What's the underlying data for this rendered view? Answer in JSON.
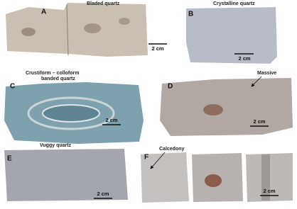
{
  "panels": [
    {
      "letter": "A",
      "caption": "Bladed quartz",
      "scale": "2 cm"
    },
    {
      "letter": "B",
      "caption": "Crystalline quartz",
      "scale": "2 cm"
    },
    {
      "letter": "C",
      "caption_lines": [
        "Crustiform – colloform",
        "banded quartz"
      ],
      "scale": "2 cm"
    },
    {
      "letter": "D",
      "annotation": "Massive",
      "scale": "2 cm"
    },
    {
      "letter": "E",
      "caption": "Vuggy quartz",
      "scale": "2 cm"
    },
    {
      "letter": "F",
      "annotation": "Calcedony",
      "scale": "2 cm"
    }
  ]
}
